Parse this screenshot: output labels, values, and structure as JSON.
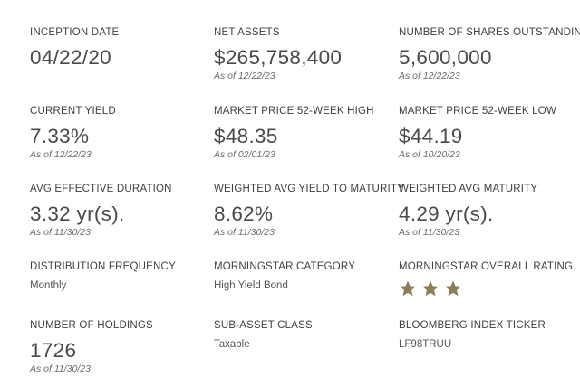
{
  "stats": {
    "inception_date": {
      "label": "INCEPTION DATE",
      "value": "04/22/20"
    },
    "net_assets": {
      "label": "NET ASSETS",
      "value": "$265,758,400",
      "as_of": "As of  12/22/23"
    },
    "shares_outstanding": {
      "label": "NUMBER OF SHARES OUTSTANDING",
      "value": "5,600,000",
      "as_of": "As of  12/22/23"
    },
    "current_yield": {
      "label": "CURRENT YIELD",
      "value": "7.33%",
      "as_of": "As of  12/22/23"
    },
    "price_52wk_high": {
      "label": "MARKET PRICE 52-WEEK HIGH",
      "value": "$48.35",
      "as_of": "As of  02/01/23"
    },
    "price_52wk_low": {
      "label": "MARKET PRICE 52-WEEK LOW",
      "value": "$44.19",
      "as_of": "As of  10/20/23"
    },
    "avg_effective_duration": {
      "label": "AVG EFFECTIVE DURATION",
      "value": "3.32 yr(s).",
      "as_of": "As of  11/30/23"
    },
    "weighted_avg_ytm": {
      "label": "WEIGHTED AVG YIELD TO MATURITY",
      "value": "8.62%",
      "as_of": "As of  11/30/23"
    },
    "weighted_avg_maturity": {
      "label": "WEIGHTED AVG MATURITY",
      "value": "4.29 yr(s).",
      "as_of": "As of  11/30/23"
    },
    "distribution_frequency": {
      "label": "DISTRIBUTION FREQUENCY",
      "value": "Monthly"
    },
    "morningstar_category": {
      "label": "MORNINGSTAR CATEGORY",
      "value": "High Yield Bond"
    },
    "morningstar_rating": {
      "label": "MORNINGSTAR OVERALL RATING",
      "stars": 3,
      "star_icon": "star-icon",
      "star_color": "#8b7d5a"
    },
    "number_of_holdings": {
      "label": "NUMBER OF HOLDINGS",
      "value": "1726",
      "as_of": "As of  11/30/23"
    },
    "sub_asset_class": {
      "label": "SUB-ASSET CLASS",
      "value": "Taxable"
    },
    "bloomberg_ticker": {
      "label": "BLOOMBERG INDEX TICKER",
      "value": "LF98TRUU"
    }
  }
}
